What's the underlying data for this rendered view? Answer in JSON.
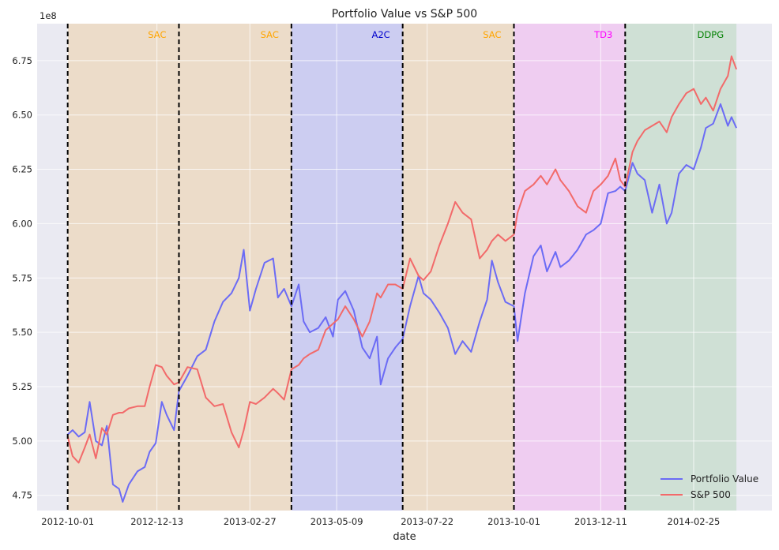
{
  "chart_data": {
    "type": "line",
    "title": "Portfolio Value vs S&P 500",
    "xlabel": "date",
    "ylabel": "",
    "y_offset_label": "1e8",
    "y_scale": 100000000,
    "xlim": [
      "2012-09-06",
      "2014-04-30"
    ],
    "ylim": [
      4.68,
      6.92
    ],
    "x_ticks": [
      "2012-10-01",
      "2012-12-13",
      "2013-02-27",
      "2013-05-09",
      "2013-07-22",
      "2013-10-01",
      "2013-12-11",
      "2014-02-25"
    ],
    "y_ticks": [
      4.75,
      5.0,
      5.25,
      5.5,
      5.75,
      6.0,
      6.25,
      6.5,
      6.75
    ],
    "y_tick_labels": [
      "4.75",
      "5.00",
      "5.25",
      "5.50",
      "5.75",
      "6.00",
      "6.25",
      "6.50",
      "6.75"
    ],
    "grid": true,
    "legend_position": "lower-right",
    "regions": [
      {
        "label": "SAC",
        "start": "2012-10-01",
        "end": "2012-12-31",
        "fill": "#ecdcc9",
        "label_color": "#ffa500"
      },
      {
        "label": "SAC",
        "start": "2012-12-31",
        "end": "2013-04-02",
        "fill": "#ecdcc9",
        "label_color": "#ffa500"
      },
      {
        "label": "A2C",
        "start": "2013-04-02",
        "end": "2013-07-02",
        "fill": "#cccdf1",
        "label_color": "#0000cd"
      },
      {
        "label": "SAC",
        "start": "2013-07-02",
        "end": "2013-10-01",
        "fill": "#ecdcc9",
        "label_color": "#ffa500"
      },
      {
        "label": "TD3",
        "start": "2013-10-01",
        "end": "2013-12-31",
        "fill": "#efcdf1",
        "label_color": "#ff00ff"
      },
      {
        "label": "DDPG",
        "start": "2013-12-31",
        "end": "2014-04-01",
        "fill": "#cfe0d5",
        "label_color": "#008000"
      }
    ],
    "boundaries": [
      "2012-10-01",
      "2012-12-31",
      "2013-04-02",
      "2013-07-02",
      "2013-10-01",
      "2013-12-31"
    ],
    "series": [
      {
        "name": "Portfolio Value",
        "color": "#6b6bf5",
        "points": [
          [
            "2012-10-01",
            5.03
          ],
          [
            "2012-10-05",
            5.05
          ],
          [
            "2012-10-10",
            5.02
          ],
          [
            "2012-10-15",
            5.04
          ],
          [
            "2012-10-19",
            5.18
          ],
          [
            "2012-10-24",
            5.0
          ],
          [
            "2012-10-29",
            4.98
          ],
          [
            "2012-11-02",
            5.07
          ],
          [
            "2012-11-07",
            4.8
          ],
          [
            "2012-11-12",
            4.78
          ],
          [
            "2012-11-15",
            4.72
          ],
          [
            "2012-11-20",
            4.8
          ],
          [
            "2012-11-27",
            4.86
          ],
          [
            "2012-12-03",
            4.88
          ],
          [
            "2012-12-07",
            4.95
          ],
          [
            "2012-12-12",
            4.99
          ],
          [
            "2012-12-17",
            5.18
          ],
          [
            "2012-12-21",
            5.12
          ],
          [
            "2012-12-27",
            5.05
          ],
          [
            "2012-12-31",
            5.23
          ],
          [
            "2013-01-07",
            5.3
          ],
          [
            "2013-01-15",
            5.39
          ],
          [
            "2013-01-22",
            5.42
          ],
          [
            "2013-01-29",
            5.55
          ],
          [
            "2013-02-05",
            5.64
          ],
          [
            "2013-02-12",
            5.68
          ],
          [
            "2013-02-18",
            5.75
          ],
          [
            "2013-02-22",
            5.88
          ],
          [
            "2013-02-27",
            5.6
          ],
          [
            "2013-03-04",
            5.7
          ],
          [
            "2013-03-11",
            5.82
          ],
          [
            "2013-03-18",
            5.84
          ],
          [
            "2013-03-22",
            5.66
          ],
          [
            "2013-03-27",
            5.7
          ],
          [
            "2013-04-02",
            5.62
          ],
          [
            "2013-04-08",
            5.72
          ],
          [
            "2013-04-12",
            5.55
          ],
          [
            "2013-04-17",
            5.5
          ],
          [
            "2013-04-24",
            5.52
          ],
          [
            "2013-04-30",
            5.57
          ],
          [
            "2013-05-06",
            5.48
          ],
          [
            "2013-05-10",
            5.65
          ],
          [
            "2013-05-16",
            5.69
          ],
          [
            "2013-05-23",
            5.6
          ],
          [
            "2013-05-30",
            5.43
          ],
          [
            "2013-06-05",
            5.38
          ],
          [
            "2013-06-11",
            5.48
          ],
          [
            "2013-06-14",
            5.26
          ],
          [
            "2013-06-20",
            5.38
          ],
          [
            "2013-06-26",
            5.43
          ],
          [
            "2013-07-02",
            5.47
          ],
          [
            "2013-07-08",
            5.62
          ],
          [
            "2013-07-15",
            5.76
          ],
          [
            "2013-07-19",
            5.68
          ],
          [
            "2013-07-25",
            5.65
          ],
          [
            "2013-08-01",
            5.59
          ],
          [
            "2013-08-08",
            5.52
          ],
          [
            "2013-08-14",
            5.4
          ],
          [
            "2013-08-20",
            5.46
          ],
          [
            "2013-08-27",
            5.41
          ],
          [
            "2013-09-03",
            5.55
          ],
          [
            "2013-09-09",
            5.65
          ],
          [
            "2013-09-13",
            5.83
          ],
          [
            "2013-09-18",
            5.73
          ],
          [
            "2013-09-24",
            5.64
          ],
          [
            "2013-10-01",
            5.62
          ],
          [
            "2013-10-04",
            5.46
          ],
          [
            "2013-10-10",
            5.68
          ],
          [
            "2013-10-17",
            5.85
          ],
          [
            "2013-10-23",
            5.9
          ],
          [
            "2013-10-28",
            5.78
          ],
          [
            "2013-11-04",
            5.87
          ],
          [
            "2013-11-08",
            5.8
          ],
          [
            "2013-11-15",
            5.83
          ],
          [
            "2013-11-22",
            5.88
          ],
          [
            "2013-11-29",
            5.95
          ],
          [
            "2013-12-05",
            5.97
          ],
          [
            "2013-12-11",
            6.0
          ],
          [
            "2013-12-17",
            6.14
          ],
          [
            "2013-12-23",
            6.15
          ],
          [
            "2013-12-27",
            6.17
          ],
          [
            "2013-12-31",
            6.15
          ],
          [
            "2014-01-06",
            6.28
          ],
          [
            "2014-01-10",
            6.23
          ],
          [
            "2014-01-16",
            6.2
          ],
          [
            "2014-01-22",
            6.05
          ],
          [
            "2014-01-28",
            6.18
          ],
          [
            "2014-02-03",
            6.0
          ],
          [
            "2014-02-07",
            6.05
          ],
          [
            "2014-02-13",
            6.23
          ],
          [
            "2014-02-19",
            6.27
          ],
          [
            "2014-02-25",
            6.25
          ],
          [
            "2014-03-03",
            6.35
          ],
          [
            "2014-03-07",
            6.44
          ],
          [
            "2014-03-13",
            6.46
          ],
          [
            "2014-03-19",
            6.55
          ],
          [
            "2014-03-25",
            6.45
          ],
          [
            "2014-03-28",
            6.49
          ],
          [
            "2014-04-01",
            6.44
          ]
        ]
      },
      {
        "name": "S&P 500",
        "color": "#f26a6a",
        "points": [
          [
            "2012-10-01",
            5.02
          ],
          [
            "2012-10-05",
            4.93
          ],
          [
            "2012-10-10",
            4.9
          ],
          [
            "2012-10-15",
            4.97
          ],
          [
            "2012-10-19",
            5.03
          ],
          [
            "2012-10-24",
            4.92
          ],
          [
            "2012-10-29",
            5.06
          ],
          [
            "2012-11-02",
            5.03
          ],
          [
            "2012-11-07",
            5.12
          ],
          [
            "2012-11-12",
            5.13
          ],
          [
            "2012-11-15",
            5.13
          ],
          [
            "2012-11-20",
            5.15
          ],
          [
            "2012-11-27",
            5.16
          ],
          [
            "2012-12-03",
            5.16
          ],
          [
            "2012-12-07",
            5.25
          ],
          [
            "2012-12-12",
            5.35
          ],
          [
            "2012-12-17",
            5.34
          ],
          [
            "2012-12-21",
            5.3
          ],
          [
            "2012-12-27",
            5.26
          ],
          [
            "2012-12-31",
            5.27
          ],
          [
            "2013-01-07",
            5.34
          ],
          [
            "2013-01-15",
            5.33
          ],
          [
            "2013-01-22",
            5.2
          ],
          [
            "2013-01-29",
            5.16
          ],
          [
            "2013-02-05",
            5.17
          ],
          [
            "2013-02-12",
            5.04
          ],
          [
            "2013-02-18",
            4.97
          ],
          [
            "2013-02-22",
            5.05
          ],
          [
            "2013-02-27",
            5.18
          ],
          [
            "2013-03-04",
            5.17
          ],
          [
            "2013-03-11",
            5.2
          ],
          [
            "2013-03-18",
            5.24
          ],
          [
            "2013-03-22",
            5.22
          ],
          [
            "2013-03-27",
            5.19
          ],
          [
            "2013-04-02",
            5.33
          ],
          [
            "2013-04-08",
            5.35
          ],
          [
            "2013-04-12",
            5.38
          ],
          [
            "2013-04-17",
            5.4
          ],
          [
            "2013-04-24",
            5.42
          ],
          [
            "2013-04-30",
            5.51
          ],
          [
            "2013-05-06",
            5.54
          ],
          [
            "2013-05-10",
            5.56
          ],
          [
            "2013-05-16",
            5.62
          ],
          [
            "2013-05-23",
            5.56
          ],
          [
            "2013-05-30",
            5.48
          ],
          [
            "2013-06-05",
            5.55
          ],
          [
            "2013-06-11",
            5.68
          ],
          [
            "2013-06-14",
            5.66
          ],
          [
            "2013-06-20",
            5.72
          ],
          [
            "2013-06-26",
            5.72
          ],
          [
            "2013-07-02",
            5.7
          ],
          [
            "2013-07-08",
            5.84
          ],
          [
            "2013-07-15",
            5.76
          ],
          [
            "2013-07-19",
            5.74
          ],
          [
            "2013-07-25",
            5.78
          ],
          [
            "2013-08-01",
            5.9
          ],
          [
            "2013-08-08",
            6.0
          ],
          [
            "2013-08-14",
            6.1
          ],
          [
            "2013-08-20",
            6.05
          ],
          [
            "2013-08-27",
            6.02
          ],
          [
            "2013-09-03",
            5.84
          ],
          [
            "2013-09-09",
            5.88
          ],
          [
            "2013-09-13",
            5.92
          ],
          [
            "2013-09-18",
            5.95
          ],
          [
            "2013-09-24",
            5.92
          ],
          [
            "2013-10-01",
            5.95
          ],
          [
            "2013-10-04",
            6.05
          ],
          [
            "2013-10-10",
            6.15
          ],
          [
            "2013-10-17",
            6.18
          ],
          [
            "2013-10-23",
            6.22
          ],
          [
            "2013-10-28",
            6.18
          ],
          [
            "2013-11-04",
            6.25
          ],
          [
            "2013-11-08",
            6.2
          ],
          [
            "2013-11-15",
            6.15
          ],
          [
            "2013-11-22",
            6.08
          ],
          [
            "2013-11-29",
            6.05
          ],
          [
            "2013-12-05",
            6.15
          ],
          [
            "2013-12-11",
            6.18
          ],
          [
            "2013-12-17",
            6.22
          ],
          [
            "2013-12-23",
            6.3
          ],
          [
            "2013-12-27",
            6.2
          ],
          [
            "2013-12-31",
            6.17
          ],
          [
            "2014-01-06",
            6.33
          ],
          [
            "2014-01-10",
            6.38
          ],
          [
            "2014-01-16",
            6.43
          ],
          [
            "2014-01-22",
            6.45
          ],
          [
            "2014-01-28",
            6.47
          ],
          [
            "2014-02-03",
            6.42
          ],
          [
            "2014-02-07",
            6.49
          ],
          [
            "2014-02-13",
            6.55
          ],
          [
            "2014-02-19",
            6.6
          ],
          [
            "2014-02-25",
            6.62
          ],
          [
            "2014-03-03",
            6.55
          ],
          [
            "2014-03-07",
            6.58
          ],
          [
            "2014-03-13",
            6.52
          ],
          [
            "2014-03-19",
            6.62
          ],
          [
            "2014-03-25",
            6.68
          ],
          [
            "2014-03-28",
            6.77
          ],
          [
            "2014-04-01",
            6.71
          ]
        ]
      }
    ]
  }
}
